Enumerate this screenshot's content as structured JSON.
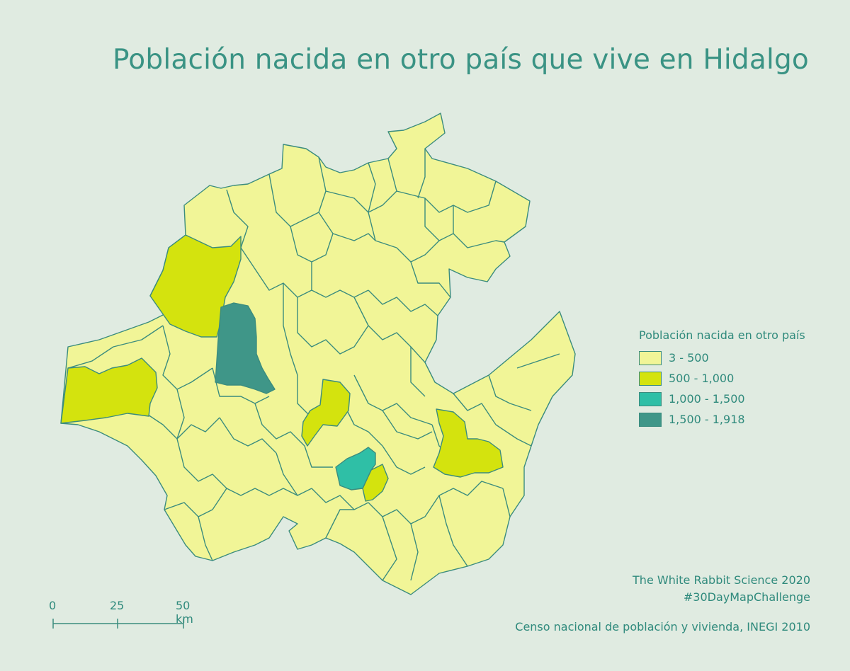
{
  "title": "Población nacida en otro país que vive en Hidalgo",
  "legend": {
    "title": "Población nacida en otro país",
    "items": [
      {
        "label": "3 - 500",
        "color": "#f1f597"
      },
      {
        "label": "500 - 1,000",
        "color": "#d4e30e"
      },
      {
        "label": "1,000 - 1,500",
        "color": "#2fbfa6"
      },
      {
        "label": "1,500 - 1,918",
        "color": "#3f9688"
      }
    ]
  },
  "colors": {
    "background": "#e0ebe1",
    "boundary": "#3b8c7e",
    "text": "#2f8a7c"
  },
  "credits": {
    "line1": "The White Rabbit Science 2020",
    "line2": "#30DayMapChallenge"
  },
  "source": "Censo nacional de población y vivienda,  INEGI 2010",
  "scalebar": {
    "labels": [
      "0",
      "25",
      "50 km"
    ]
  }
}
